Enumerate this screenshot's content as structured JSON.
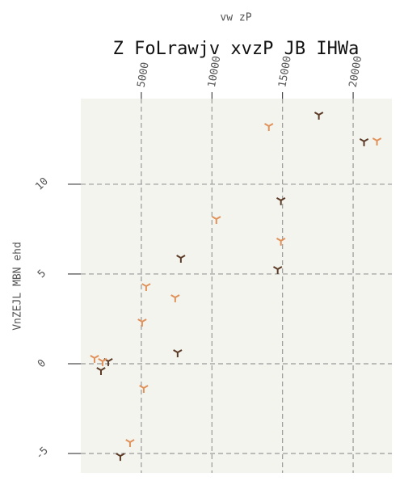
{
  "chart_data": {
    "type": "scatter",
    "title": "Z FoLrawjv xvzP JB IHWa",
    "xlabel": "vw zP",
    "ylabel": "VnZEJL MBN ehd",
    "xlim": [
      714,
      22743
    ],
    "ylim": [
      -6.08,
      14.77
    ],
    "xticks": [
      5000,
      10000,
      15000,
      20000
    ],
    "yticks": [
      -5,
      0,
      5,
      10
    ],
    "grid": true,
    "series": [
      {
        "name": null,
        "color": "#5b3a26",
        "x": [
          17571,
          20771,
          14886,
          7800,
          14657,
          7571,
          2657,
          2143,
          3514
        ],
        "values": [
          13.87,
          12.39,
          9.1,
          5.9,
          5.27,
          0.63,
          0.14,
          -0.36,
          -5.14
        ]
      },
      {
        "name": null,
        "color": "#e0925a",
        "x": [
          14029,
          21686,
          10314,
          14886,
          5343,
          7400,
          5057,
          1686,
          2257,
          5171,
          4200
        ],
        "values": [
          13.24,
          12.43,
          8.06,
          6.85,
          4.32,
          3.69,
          2.34,
          0.32,
          0.14,
          -1.35,
          -4.37
        ]
      }
    ]
  }
}
